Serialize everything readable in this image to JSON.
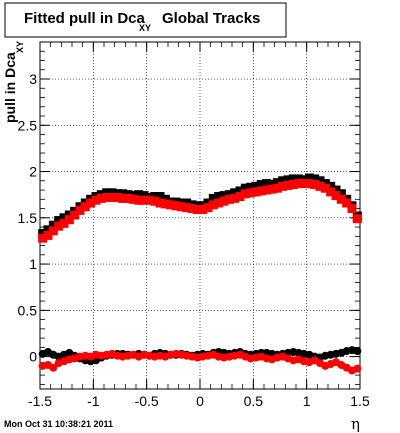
{
  "chart_data": {
    "type": "scatter",
    "title": "Fitted pull in Dca",
    "title_subscript": "XY",
    "title_suffix": "Global Tracks",
    "xlabel": "η",
    "ylabel": "pull in Dca",
    "ylabel_subscript": "XY",
    "xlim": [
      -1.5,
      1.5
    ],
    "ylim": [
      -0.35,
      3.4
    ],
    "x_ticks": [
      "-1.5",
      "-1",
      "-0.5",
      "0",
      "0.5",
      "1",
      "1.5"
    ],
    "y_ticks": [
      "0",
      "0.5",
      "1",
      "1.5",
      "2",
      "2.5",
      "3"
    ],
    "grid": true,
    "date_stamp": "Mon Oct 31 10:38:21 2011",
    "colors": {
      "series_black": "#000000",
      "series_red": "#ff0000"
    },
    "series": [
      {
        "marker": "square",
        "color": "#000000",
        "x": [
          -1.475,
          -1.425,
          -1.375,
          -1.325,
          -1.275,
          -1.225,
          -1.175,
          -1.125,
          -1.075,
          -1.025,
          -0.975,
          -0.925,
          -0.875,
          -0.825,
          -0.775,
          -0.725,
          -0.675,
          -0.625,
          -0.575,
          -0.525,
          -0.475,
          -0.425,
          -0.375,
          -0.325,
          -0.275,
          -0.225,
          -0.175,
          -0.125,
          -0.075,
          -0.025,
          0.025,
          0.075,
          0.125,
          0.175,
          0.225,
          0.275,
          0.325,
          0.375,
          0.425,
          0.475,
          0.525,
          0.575,
          0.625,
          0.675,
          0.725,
          0.775,
          0.825,
          0.875,
          0.925,
          0.975,
          1.025,
          1.075,
          1.125,
          1.175,
          1.225,
          1.275,
          1.325,
          1.375,
          1.425,
          1.475
        ],
        "y": [
          1.33,
          1.37,
          1.42,
          1.47,
          1.5,
          1.53,
          1.57,
          1.62,
          1.66,
          1.7,
          1.73,
          1.75,
          1.77,
          1.77,
          1.76,
          1.76,
          1.75,
          1.74,
          1.75,
          1.74,
          1.72,
          1.73,
          1.73,
          1.7,
          1.67,
          1.67,
          1.66,
          1.66,
          1.64,
          1.63,
          1.63,
          1.66,
          1.71,
          1.73,
          1.74,
          1.75,
          1.77,
          1.79,
          1.82,
          1.83,
          1.84,
          1.86,
          1.87,
          1.86,
          1.88,
          1.9,
          1.91,
          1.92,
          1.92,
          1.91,
          1.93,
          1.92,
          1.9,
          1.87,
          1.84,
          1.8,
          1.76,
          1.7,
          1.63,
          1.52
        ]
      },
      {
        "marker": "square",
        "color": "#ff0000",
        "x": [
          -1.475,
          -1.425,
          -1.375,
          -1.325,
          -1.275,
          -1.225,
          -1.175,
          -1.125,
          -1.075,
          -1.025,
          -0.975,
          -0.925,
          -0.875,
          -0.825,
          -0.775,
          -0.725,
          -0.675,
          -0.625,
          -0.575,
          -0.525,
          -0.475,
          -0.425,
          -0.375,
          -0.325,
          -0.275,
          -0.225,
          -0.175,
          -0.125,
          -0.075,
          -0.025,
          0.025,
          0.075,
          0.125,
          0.175,
          0.225,
          0.275,
          0.325,
          0.375,
          0.425,
          0.475,
          0.525,
          0.575,
          0.625,
          0.675,
          0.725,
          0.775,
          0.825,
          0.875,
          0.925,
          0.975,
          1.025,
          1.075,
          1.125,
          1.175,
          1.225,
          1.275,
          1.325,
          1.375,
          1.425,
          1.475
        ],
        "y": [
          1.28,
          1.31,
          1.36,
          1.41,
          1.44,
          1.48,
          1.53,
          1.58,
          1.62,
          1.66,
          1.69,
          1.71,
          1.72,
          1.72,
          1.72,
          1.71,
          1.71,
          1.7,
          1.69,
          1.69,
          1.69,
          1.68,
          1.66,
          1.65,
          1.64,
          1.63,
          1.62,
          1.61,
          1.6,
          1.59,
          1.59,
          1.61,
          1.64,
          1.66,
          1.68,
          1.7,
          1.71,
          1.73,
          1.76,
          1.77,
          1.78,
          1.79,
          1.8,
          1.81,
          1.82,
          1.84,
          1.85,
          1.86,
          1.87,
          1.87,
          1.87,
          1.86,
          1.84,
          1.82,
          1.78,
          1.74,
          1.7,
          1.66,
          1.6,
          1.49
        ]
      },
      {
        "marker": "circle",
        "color": "#000000",
        "x": [
          -1.475,
          -1.425,
          -1.375,
          -1.325,
          -1.275,
          -1.225,
          -1.175,
          -1.125,
          -1.075,
          -1.025,
          -0.975,
          -0.925,
          -0.875,
          -0.825,
          -0.775,
          -0.725,
          -0.675,
          -0.625,
          -0.575,
          -0.525,
          -0.475,
          -0.425,
          -0.375,
          -0.325,
          -0.275,
          -0.225,
          -0.175,
          -0.125,
          -0.075,
          -0.025,
          0.025,
          0.075,
          0.125,
          0.175,
          0.225,
          0.275,
          0.325,
          0.375,
          0.425,
          0.475,
          0.525,
          0.575,
          0.625,
          0.675,
          0.725,
          0.775,
          0.825,
          0.875,
          0.925,
          0.975,
          1.025,
          1.075,
          1.125,
          1.175,
          1.225,
          1.275,
          1.325,
          1.375,
          1.425,
          1.475
        ],
        "y": [
          0.03,
          0.05,
          0.02,
          0.0,
          0.02,
          0.04,
          0.01,
          -0.02,
          -0.04,
          -0.05,
          -0.04,
          -0.01,
          0.01,
          0.02,
          0.03,
          0.03,
          0.02,
          0.02,
          0.03,
          0.02,
          0.01,
          0.03,
          0.04,
          0.03,
          0.02,
          0.02,
          0.03,
          0.02,
          0.01,
          0.02,
          0.03,
          0.02,
          0.04,
          0.05,
          0.04,
          0.03,
          0.04,
          0.05,
          0.03,
          0.02,
          0.03,
          0.04,
          0.04,
          0.03,
          0.02,
          0.03,
          0.04,
          0.05,
          0.04,
          0.03,
          0.02,
          0.0,
          -0.01,
          0.01,
          0.02,
          0.03,
          0.04,
          0.06,
          0.07,
          0.06
        ]
      },
      {
        "marker": "circle",
        "color": "#ff0000",
        "x": [
          -1.475,
          -1.425,
          -1.375,
          -1.325,
          -1.275,
          -1.225,
          -1.175,
          -1.125,
          -1.075,
          -1.025,
          -0.975,
          -0.925,
          -0.875,
          -0.825,
          -0.775,
          -0.725,
          -0.675,
          -0.625,
          -0.575,
          -0.525,
          -0.475,
          -0.425,
          -0.375,
          -0.325,
          -0.275,
          -0.225,
          -0.175,
          -0.125,
          -0.075,
          -0.025,
          0.025,
          0.075,
          0.125,
          0.175,
          0.225,
          0.275,
          0.325,
          0.375,
          0.425,
          0.475,
          0.525,
          0.575,
          0.625,
          0.675,
          0.725,
          0.775,
          0.825,
          0.875,
          0.925,
          0.975,
          1.025,
          1.075,
          1.125,
          1.175,
          1.225,
          1.275,
          1.325,
          1.375,
          1.425,
          1.475
        ],
        "y": [
          -0.1,
          -0.09,
          -0.12,
          -0.07,
          -0.05,
          -0.03,
          -0.02,
          0.0,
          0.01,
          0.0,
          0.02,
          0.01,
          0.02,
          0.03,
          0.01,
          0.0,
          0.01,
          0.02,
          0.0,
          0.02,
          0.01,
          0.0,
          0.01,
          0.0,
          0.02,
          0.03,
          0.02,
          0.01,
          0.0,
          -0.01,
          0.0,
          0.01,
          0.02,
          0.0,
          -0.01,
          0.0,
          0.01,
          0.02,
          0.0,
          -0.02,
          -0.01,
          0.0,
          -0.02,
          -0.03,
          -0.01,
          0.0,
          -0.02,
          -0.04,
          -0.03,
          -0.05,
          -0.06,
          -0.04,
          -0.07,
          -0.1,
          -0.08,
          -0.06,
          -0.09,
          -0.12,
          -0.15,
          -0.13
        ]
      }
    ]
  }
}
